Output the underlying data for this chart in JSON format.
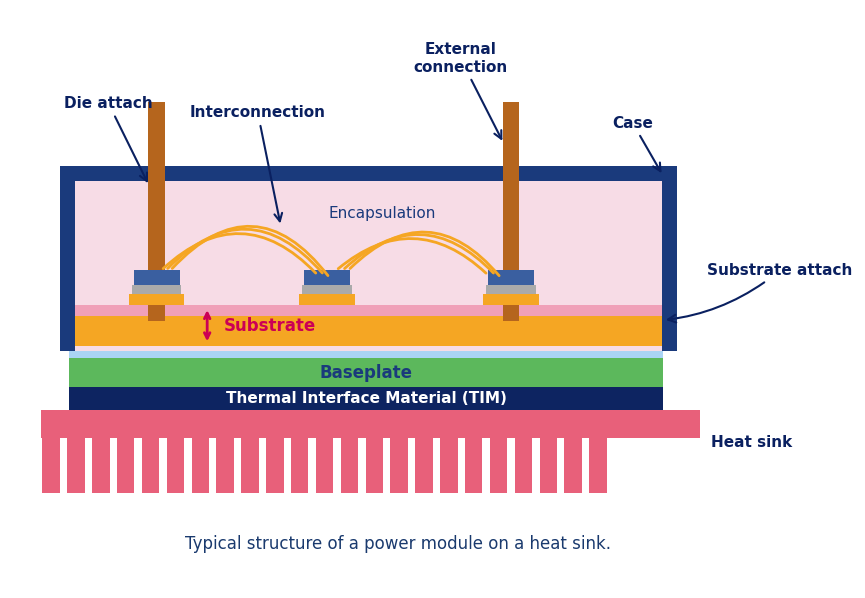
{
  "bg_color": "#ffffff",
  "caption": "Typical structure of a power module on a heat sink.",
  "caption_color": "#1a3a6e",
  "caption_fontsize": 12,
  "colors": {
    "case_border": "#1a3a7c",
    "case_fill": "#f7dce6",
    "baseplate_green": "#5cb85c",
    "baseplate_blue_stripe": "#aad4f5",
    "tim": "#0d2461",
    "substrate_yellow": "#f5a623",
    "substrate_pink": "#f0a0b8",
    "die_blue": "#3a5fa0",
    "die_gray": "#aaaaaa",
    "connector_brown": "#b5651d",
    "wire_yellow": "#f5a623",
    "heatsink_pink": "#e8607a",
    "arrow_dark": "#0a2060",
    "substrate_arrow": "#cc0055",
    "text_dark": "#0a2060",
    "baseplate_text": "#1a3a7c",
    "tim_text": "#ffffff",
    "encap_text": "#1a3a7c"
  },
  "labels": {
    "die_attach": "Die attach",
    "interconnection": "Interconnection",
    "external_connection": "External\nconnection",
    "case": "Case",
    "encapsulation": "Encapsulation",
    "substrate_attach": "Substrate attach",
    "substrate": "Substrate",
    "baseplate": "Baseplate",
    "tim": "Thermal Interface Material (TIM)",
    "heat_sink": "Heat sink"
  }
}
